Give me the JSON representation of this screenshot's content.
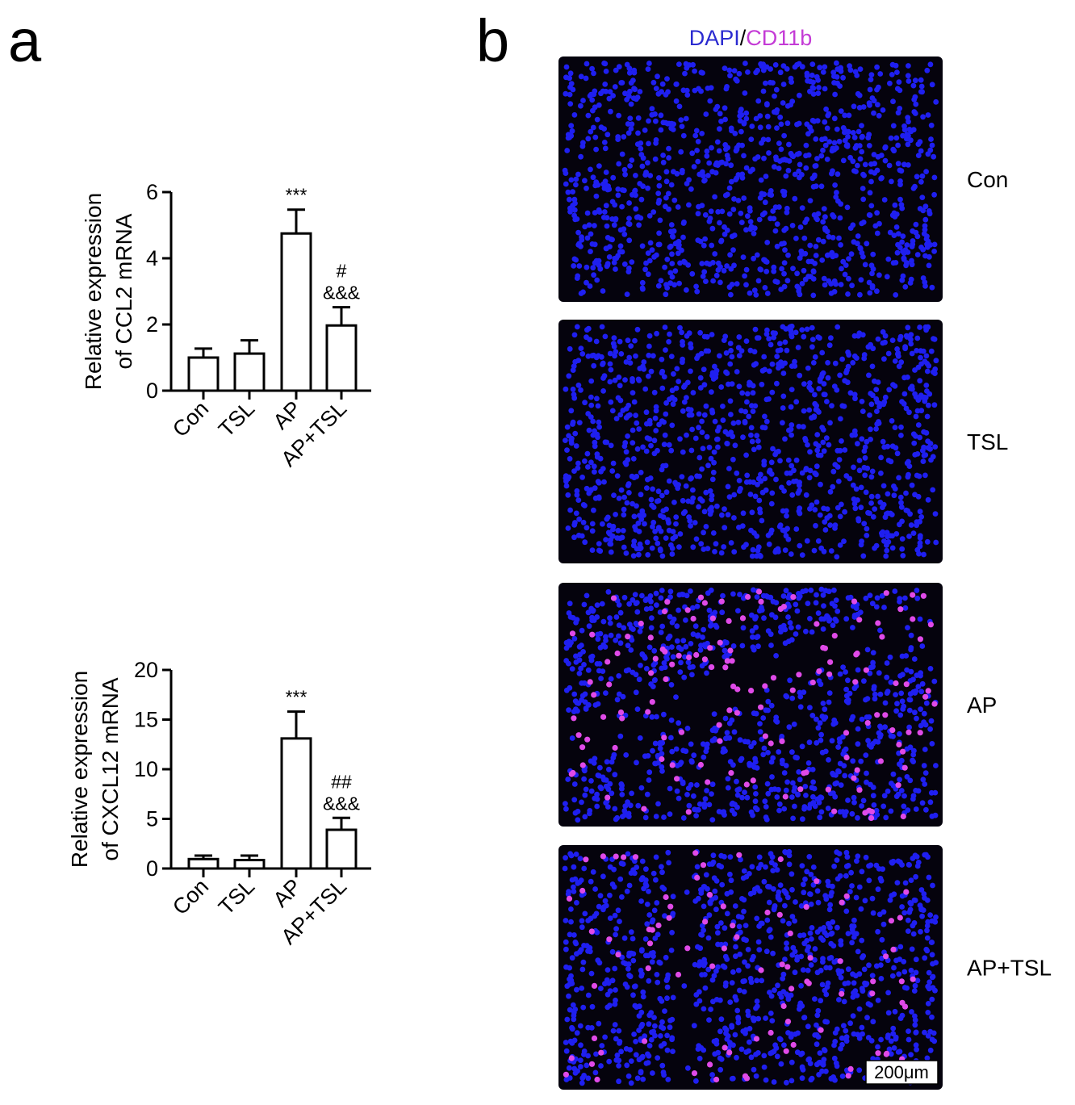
{
  "panel_labels": [
    "a",
    "b"
  ],
  "chart_data": [
    {
      "type": "bar",
      "ylabel": [
        "Relative expression",
        "of CCL2 mRNA"
      ],
      "categories": [
        "Con",
        "TSL",
        "AP",
        "AP+TSL"
      ],
      "values": [
        1.0,
        1.12,
        4.75,
        1.97
      ],
      "errors": [
        0.27,
        0.4,
        0.72,
        0.55
      ],
      "bar_labels": [
        null,
        null,
        [
          "***"
        ],
        [
          "#",
          "&&&"
        ]
      ],
      "color": "#ffffff",
      "ylim": [
        0,
        6
      ],
      "yticks": [
        0,
        2,
        4,
        6
      ]
    },
    {
      "type": "bar",
      "ylabel": [
        "Relative expression",
        "of CXCL12 mRNA"
      ],
      "categories": [
        "Con",
        "TSL",
        "AP",
        "AP+TSL"
      ],
      "values": [
        0.95,
        0.85,
        13.1,
        3.9
      ],
      "errors": [
        0.35,
        0.45,
        2.7,
        1.2
      ],
      "bar_labels": [
        null,
        null,
        [
          "***"
        ],
        [
          "##",
          "&&&"
        ]
      ],
      "color": "#ffffff",
      "ylim": [
        0,
        20
      ],
      "yticks": [
        0,
        5,
        10,
        15,
        20
      ]
    }
  ],
  "image_panel": {
    "title": [
      "DAPI",
      "/",
      "CD11b"
    ],
    "rows": [
      "Con",
      "TSL",
      "AP",
      "AP+TSL"
    ],
    "scale_bar": "200μm"
  }
}
